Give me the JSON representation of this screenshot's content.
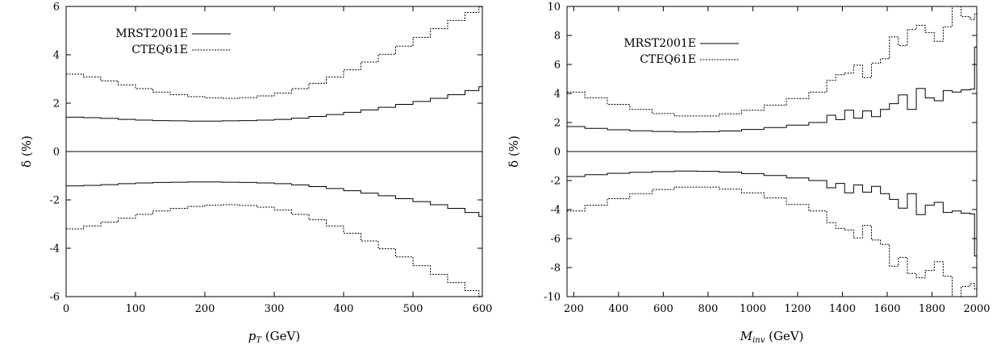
{
  "chart_data": [
    {
      "type": "line",
      "step": true,
      "xlabel": "p_T (GeV)",
      "xlabel_main": "p",
      "xlabel_sub": "T",
      "xlabel_rest": " (GeV)",
      "ylabel": "δ (%)",
      "xlim": [
        0,
        600
      ],
      "ylim": [
        -6,
        6
      ],
      "xticks": [
        0,
        100,
        200,
        300,
        400,
        500,
        600
      ],
      "yticks": [
        -6,
        -4,
        -2,
        0,
        2,
        4,
        6
      ],
      "legend": [
        "MRST2001E",
        "CTEQ61E"
      ],
      "legend_placement": "top-left",
      "zero_line": true,
      "x": [
        0,
        25,
        50,
        75,
        100,
        125,
        150,
        175,
        200,
        225,
        250,
        275,
        300,
        325,
        350,
        375,
        400,
        425,
        450,
        475,
        500,
        525,
        550,
        575,
        595
      ],
      "series": [
        {
          "name": "MRST2001E",
          "style": "solid",
          "bound": "upper",
          "values": [
            1.42,
            1.4,
            1.37,
            1.33,
            1.3,
            1.28,
            1.27,
            1.26,
            1.26,
            1.27,
            1.28,
            1.3,
            1.33,
            1.38,
            1.45,
            1.53,
            1.62,
            1.72,
            1.83,
            1.95,
            2.07,
            2.2,
            2.35,
            2.52,
            2.68
          ]
        },
        {
          "name": "MRST2001E",
          "style": "solid",
          "bound": "lower",
          "values": [
            -1.42,
            -1.4,
            -1.37,
            -1.33,
            -1.3,
            -1.28,
            -1.27,
            -1.26,
            -1.26,
            -1.27,
            -1.28,
            -1.3,
            -1.33,
            -1.38,
            -1.45,
            -1.53,
            -1.62,
            -1.72,
            -1.83,
            -1.95,
            -2.07,
            -2.2,
            -2.35,
            -2.52,
            -2.68
          ]
        },
        {
          "name": "CTEQ61E",
          "style": "dashed",
          "bound": "upper",
          "values": [
            3.2,
            3.08,
            2.92,
            2.76,
            2.6,
            2.46,
            2.35,
            2.27,
            2.22,
            2.2,
            2.23,
            2.3,
            2.42,
            2.6,
            2.82,
            3.08,
            3.38,
            3.7,
            4.02,
            4.36,
            4.72,
            5.08,
            5.42,
            5.75,
            5.98
          ]
        },
        {
          "name": "CTEQ61E",
          "style": "dashed",
          "bound": "lower",
          "values": [
            -3.2,
            -3.08,
            -2.92,
            -2.76,
            -2.6,
            -2.46,
            -2.35,
            -2.27,
            -2.22,
            -2.2,
            -2.23,
            -2.3,
            -2.42,
            -2.6,
            -2.82,
            -3.08,
            -3.38,
            -3.7,
            -4.02,
            -4.36,
            -4.72,
            -5.08,
            -5.42,
            -5.75,
            -5.98
          ]
        }
      ]
    },
    {
      "type": "line",
      "step": true,
      "xlabel": "M_inv (GeV)",
      "xlabel_main": "M",
      "xlabel_sub": "inv",
      "xlabel_rest": " (GeV)",
      "ylabel": "δ (%)",
      "xlim": [
        170,
        2000
      ],
      "ylim": [
        -10,
        10
      ],
      "xticks": [
        200,
        400,
        600,
        800,
        1000,
        1200,
        1400,
        1600,
        1800,
        2000
      ],
      "yticks": [
        -10,
        -8,
        -6,
        -4,
        -2,
        0,
        2,
        4,
        6,
        8,
        10
      ],
      "legend": [
        "MRST2001E",
        "CTEQ61E"
      ],
      "legend_placement": "top-left",
      "zero_line": true,
      "x": [
        170,
        250,
        350,
        450,
        550,
        650,
        750,
        850,
        950,
        1050,
        1150,
        1250,
        1330,
        1370,
        1410,
        1450,
        1490,
        1530,
        1570,
        1610,
        1650,
        1690,
        1730,
        1770,
        1810,
        1850,
        1890,
        1930,
        1970,
        1990
      ],
      "series": [
        {
          "name": "MRST2001E",
          "style": "solid",
          "bound": "upper",
          "values": [
            1.72,
            1.6,
            1.5,
            1.43,
            1.38,
            1.35,
            1.37,
            1.42,
            1.52,
            1.65,
            1.82,
            2.0,
            2.5,
            2.2,
            2.85,
            2.3,
            2.8,
            2.4,
            2.9,
            3.3,
            3.9,
            2.9,
            4.35,
            3.7,
            3.5,
            4.2,
            4.1,
            4.25,
            4.3,
            7.2
          ]
        },
        {
          "name": "MRST2001E",
          "style": "solid",
          "bound": "lower",
          "values": [
            -1.72,
            -1.6,
            -1.5,
            -1.43,
            -1.38,
            -1.35,
            -1.37,
            -1.42,
            -1.52,
            -1.65,
            -1.82,
            -2.0,
            -2.5,
            -2.2,
            -2.85,
            -2.3,
            -2.8,
            -2.4,
            -2.9,
            -3.3,
            -3.9,
            -2.9,
            -4.35,
            -3.7,
            -3.5,
            -4.2,
            -4.1,
            -4.25,
            -4.3,
            -7.2
          ]
        },
        {
          "name": "CTEQ61E",
          "style": "dashed",
          "bound": "upper",
          "values": [
            4.1,
            3.7,
            3.25,
            2.9,
            2.62,
            2.45,
            2.45,
            2.6,
            2.85,
            3.2,
            3.65,
            4.1,
            4.9,
            5.3,
            5.4,
            5.95,
            5.1,
            6.1,
            6.4,
            7.9,
            7.3,
            8.4,
            8.7,
            8.2,
            7.6,
            8.6,
            10,
            9.3,
            9.1,
            9.5
          ]
        },
        {
          "name": "CTEQ61E",
          "style": "dashed",
          "bound": "lower",
          "values": [
            -4.1,
            -3.7,
            -3.25,
            -2.9,
            -2.62,
            -2.45,
            -2.45,
            -2.6,
            -2.85,
            -3.2,
            -3.65,
            -4.1,
            -4.9,
            -5.3,
            -5.4,
            -5.95,
            -5.1,
            -6.1,
            -6.4,
            -7.9,
            -7.3,
            -8.4,
            -8.7,
            -8.2,
            -7.6,
            -8.6,
            -10,
            -9.3,
            -9.1,
            -9.5
          ]
        }
      ]
    }
  ]
}
